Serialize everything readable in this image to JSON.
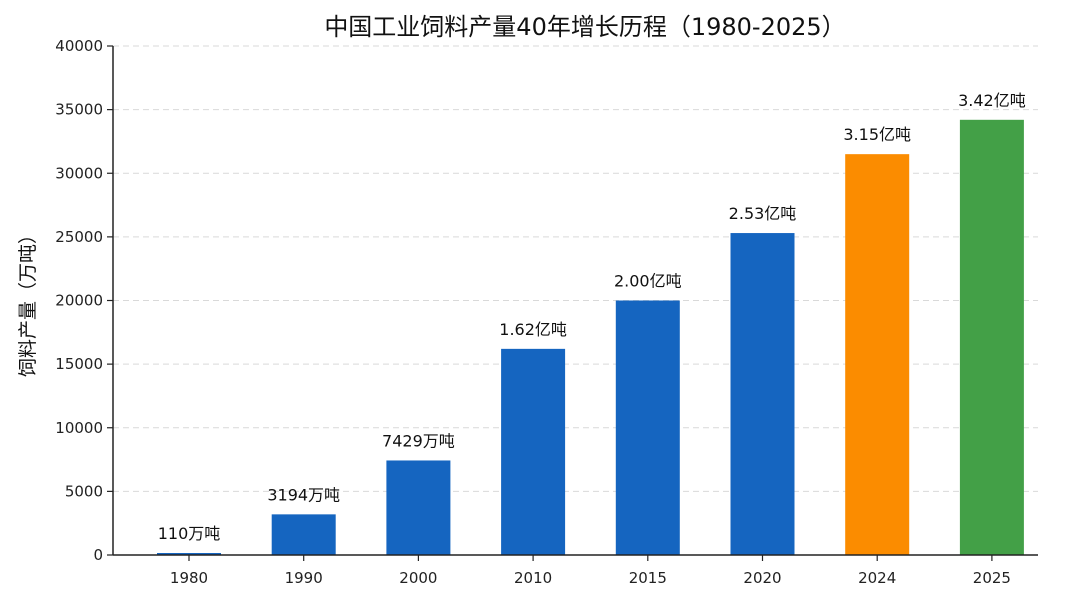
{
  "chart_data": {
    "type": "bar",
    "title": "中国工业饲料产量40年增长历程（1980-2025）",
    "xlabel": "",
    "ylabel": "饲料产量（万吨）",
    "ylim": [
      0,
      40000
    ],
    "yticks": [
      0,
      5000,
      10000,
      15000,
      20000,
      25000,
      30000,
      35000,
      40000
    ],
    "grid": true,
    "categories": [
      "1980",
      "1990",
      "2000",
      "2010",
      "2015",
      "2020",
      "2024",
      "2025"
    ],
    "values": [
      110,
      3194,
      7429,
      16200,
      20000,
      25300,
      31500,
      34200
    ],
    "data_labels": [
      "110万吨",
      "3194万吨",
      "7429万吨",
      "1.62亿吨",
      "2.00亿吨",
      "2.53亿吨",
      "3.15亿吨",
      "3.42亿吨"
    ],
    "colors": [
      "#1565c0",
      "#1565c0",
      "#1565c0",
      "#1565c0",
      "#1565c0",
      "#1565c0",
      "#fb8c00",
      "#43a047"
    ]
  }
}
